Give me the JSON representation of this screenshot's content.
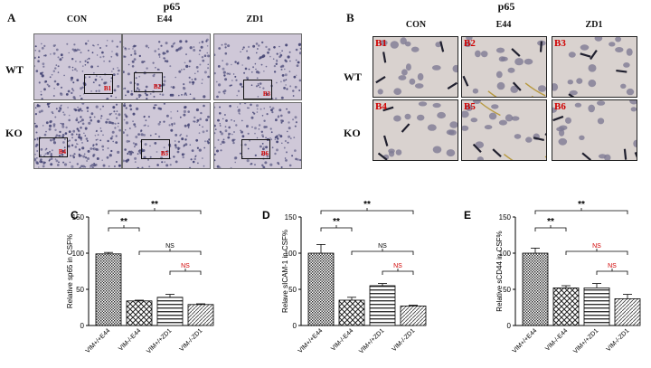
{
  "panelA": {
    "letter": "A",
    "title": "p65",
    "columns": [
      "CON",
      "E44",
      "ZD1"
    ],
    "rows": [
      "WT",
      "KO"
    ],
    "box_labels": [
      [
        "B1",
        "B2",
        "B3"
      ],
      [
        "B4",
        "B5",
        "B6"
      ]
    ]
  },
  "panelB": {
    "letter": "B",
    "title": "p65",
    "columns": [
      "CON",
      "E44",
      "ZD1"
    ],
    "rows": [
      "WT",
      "KO"
    ],
    "tile_labels": [
      [
        "B1",
        "B2",
        "B3"
      ],
      [
        "B4",
        "B5",
        "B6"
      ]
    ]
  },
  "colors": {
    "tissue": "#cfc8d8",
    "tissue_tile": "#d9d2cf",
    "nucleus": "#4a4a78",
    "annotation_red": "#d00000"
  },
  "chart_data": [
    {
      "type": "bar",
      "panel": "C",
      "ylabel": "Relative sp65 in CSF%",
      "categories": [
        "VIM+/+E44",
        "VIM-/-E44",
        "VIM+/+ZD1",
        "VIM-/-ZD1"
      ],
      "values": [
        99,
        34,
        39,
        29
      ],
      "errors": [
        2,
        1,
        4,
        1
      ],
      "ylim": [
        0,
        150
      ],
      "yticks": [
        0,
        50,
        100,
        150
      ],
      "annotations": [
        {
          "text": "**",
          "from": 0,
          "to": 3,
          "color": "#000000"
        },
        {
          "text": "**",
          "from": 0,
          "to": 1,
          "color": "#000000"
        },
        {
          "text": "NS",
          "from": 1,
          "to": 3,
          "color": "#000000"
        },
        {
          "text": "NS",
          "from": 2,
          "to": 3,
          "color": "#d00000"
        }
      ]
    },
    {
      "type": "bar",
      "panel": "D",
      "ylabel": "Relave sICAM-1 in CSF%",
      "categories": [
        "VIM+/+E44",
        "VIM-/-E44",
        "VIM+/+ZD1",
        "VIM-/-ZD1"
      ],
      "values": [
        100,
        35,
        55,
        27
      ],
      "errors": [
        12,
        4,
        3,
        1
      ],
      "ylim": [
        0,
        150
      ],
      "yticks": [
        0,
        50,
        100,
        150
      ],
      "annotations": [
        {
          "text": "**",
          "from": 0,
          "to": 3,
          "color": "#000000"
        },
        {
          "text": "**",
          "from": 0,
          "to": 1,
          "color": "#000000"
        },
        {
          "text": "NS",
          "from": 1,
          "to": 3,
          "color": "#000000"
        },
        {
          "text": "NS",
          "from": 2,
          "to": 3,
          "color": "#d00000"
        }
      ]
    },
    {
      "type": "bar",
      "panel": "E",
      "ylabel": "Relative sCD44 in CSF%",
      "categories": [
        "VIM+/+E44",
        "VIM-/-E44",
        "VIM+/+ZD1",
        "VIM-/-ZD1"
      ],
      "values": [
        100,
        52,
        52,
        37
      ],
      "errors": [
        7,
        3,
        6,
        6
      ],
      "ylim": [
        0,
        150
      ],
      "yticks": [
        0,
        50,
        100,
        150
      ],
      "annotations": [
        {
          "text": "**",
          "from": 0,
          "to": 3,
          "color": "#000000"
        },
        {
          "text": "**",
          "from": 0,
          "to": 1,
          "color": "#000000"
        },
        {
          "text": "NS",
          "from": 1,
          "to": 3,
          "color": "#d00000"
        },
        {
          "text": "NS",
          "from": 2,
          "to": 3,
          "color": "#d00000"
        }
      ]
    }
  ]
}
